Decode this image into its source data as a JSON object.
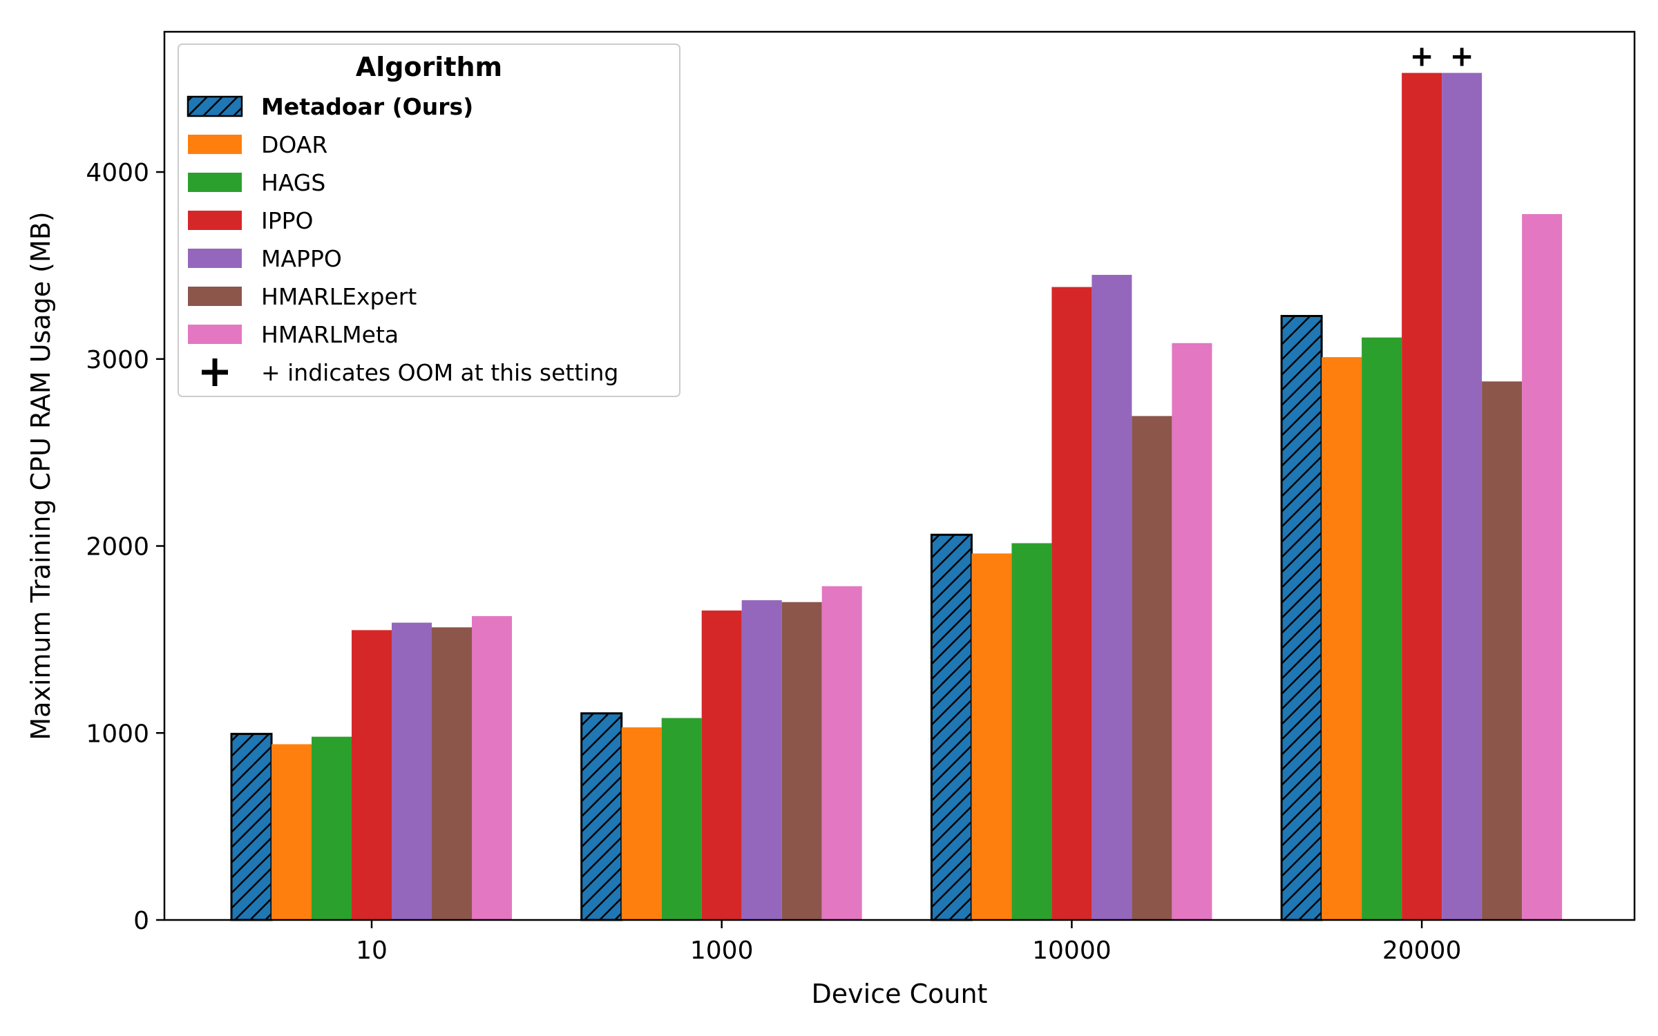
{
  "chart_data": {
    "type": "bar",
    "xlabel": "Device Count",
    "ylabel": "Maximum Training CPU RAM Usage (MB)",
    "categories": [
      "10",
      "1000",
      "10000",
      "20000"
    ],
    "ylim": [
      0,
      4750
    ],
    "yticks": [
      0,
      1000,
      2000,
      3000,
      4000
    ],
    "grid": false,
    "legend": {
      "title": "Algorithm",
      "placement": "top-left",
      "oom_label": "+ indicates OOM at this setting"
    },
    "oom_marker": "+",
    "series": [
      {
        "name": "Metadoar (Ours)",
        "color": "#1f77b4",
        "hatch": true,
        "bold": true,
        "values": [
          995,
          1105,
          2060,
          3230
        ]
      },
      {
        "name": "DOAR",
        "color": "#ff7f0e",
        "values": [
          940,
          1030,
          1960,
          3010
        ]
      },
      {
        "name": "HAGS",
        "color": "#2ca02c",
        "values": [
          980,
          1080,
          2015,
          3115
        ]
      },
      {
        "name": "IPPO",
        "color": "#d62728",
        "values": [
          1550,
          1655,
          3385,
          4530
        ],
        "oom": [
          false,
          false,
          false,
          true
        ]
      },
      {
        "name": "MAPPO",
        "color": "#9467bd",
        "values": [
          1590,
          1710,
          3450,
          4530
        ],
        "oom": [
          false,
          false,
          false,
          true
        ]
      },
      {
        "name": "HMARLExpert",
        "color": "#8c564b",
        "values": [
          1565,
          1700,
          2695,
          2880
        ]
      },
      {
        "name": "HMARLMeta",
        "color": "#e377c2",
        "values": [
          1625,
          1785,
          3085,
          3775
        ]
      }
    ]
  }
}
